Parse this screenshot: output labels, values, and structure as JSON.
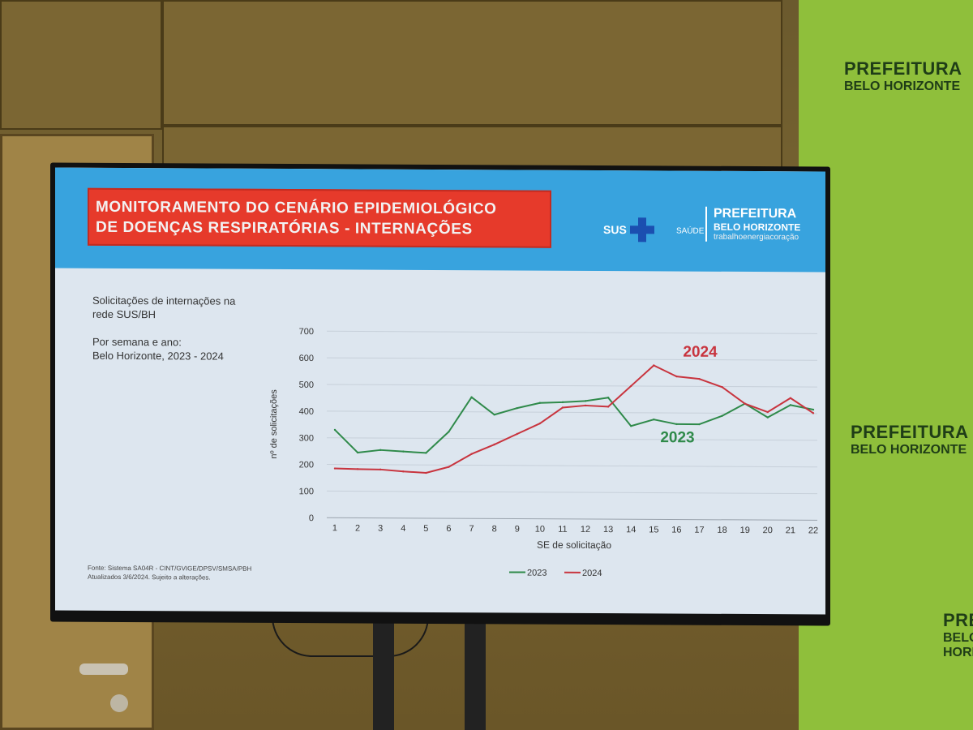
{
  "environment": {
    "backdrop_text": [
      {
        "line1": "PREFEITURA",
        "line2": "BELO HORIZONTE"
      },
      {
        "line1": "PREFEITURA",
        "line2": "BELO HORIZONTE"
      },
      {
        "line1": "PREFEITURA",
        "line2": "BELO HORIZONTE"
      }
    ]
  },
  "slide": {
    "header": {
      "title_line1": "MONITORAMENTO DO CENÁRIO EPIDEMIOLÓGICO",
      "title_line2": "DE DOENÇAS RESPIRATÓRIAS - INTERNAÇÕES",
      "sus_label": "SUS",
      "saude_label": "SAÚDE",
      "pref_line1": "PREFEITURA",
      "pref_line2": "BELO HORIZONTE",
      "pref_tagline": "trabalhoenergiacoração"
    },
    "description": {
      "line1": "Solicitações de internações na",
      "line2": "rede SUS/BH",
      "line3": "Por semana e ano:",
      "line4": "Belo Horizonte, 2023 - 2024"
    },
    "source": {
      "line1": "Fonte: Sistema SA04R - CINT/GVIGE/DPSV/SMSA/PBH",
      "line2": "Atualizados 3/6/2024. Sujeito a alterações."
    }
  },
  "colors": {
    "series_2023": "#2f8a4a",
    "series_2024": "#c8343e",
    "header_bg": "#38a3de",
    "title_bg": "#e63a2b"
  },
  "chart_data": {
    "type": "line",
    "title": "",
    "xlabel": "SE de solicitação",
    "ylabel": "nº de solicitações",
    "ylim": [
      0,
      700
    ],
    "yticks": [
      0,
      100,
      200,
      300,
      400,
      500,
      600,
      700
    ],
    "grid": true,
    "legend_position": "bottom",
    "x": [
      1,
      2,
      3,
      4,
      5,
      6,
      7,
      8,
      9,
      10,
      11,
      12,
      13,
      14,
      15,
      16,
      17,
      18,
      19,
      20,
      21,
      22
    ],
    "series": [
      {
        "name": "2023",
        "annotation": "2023",
        "values": [
          330,
          245,
          255,
          250,
          245,
          325,
          455,
          390,
          415,
          435,
          438,
          443,
          456,
          350,
          375,
          358,
          358,
          390,
          436,
          385,
          432,
          415
        ]
      },
      {
        "name": "2024",
        "annotation": "2024",
        "values": [
          185,
          183,
          182,
          175,
          170,
          193,
          242,
          278,
          318,
          358,
          418,
          426,
          422,
          500,
          578,
          537,
          528,
          498,
          436,
          405,
          458,
          402
        ]
      }
    ]
  }
}
